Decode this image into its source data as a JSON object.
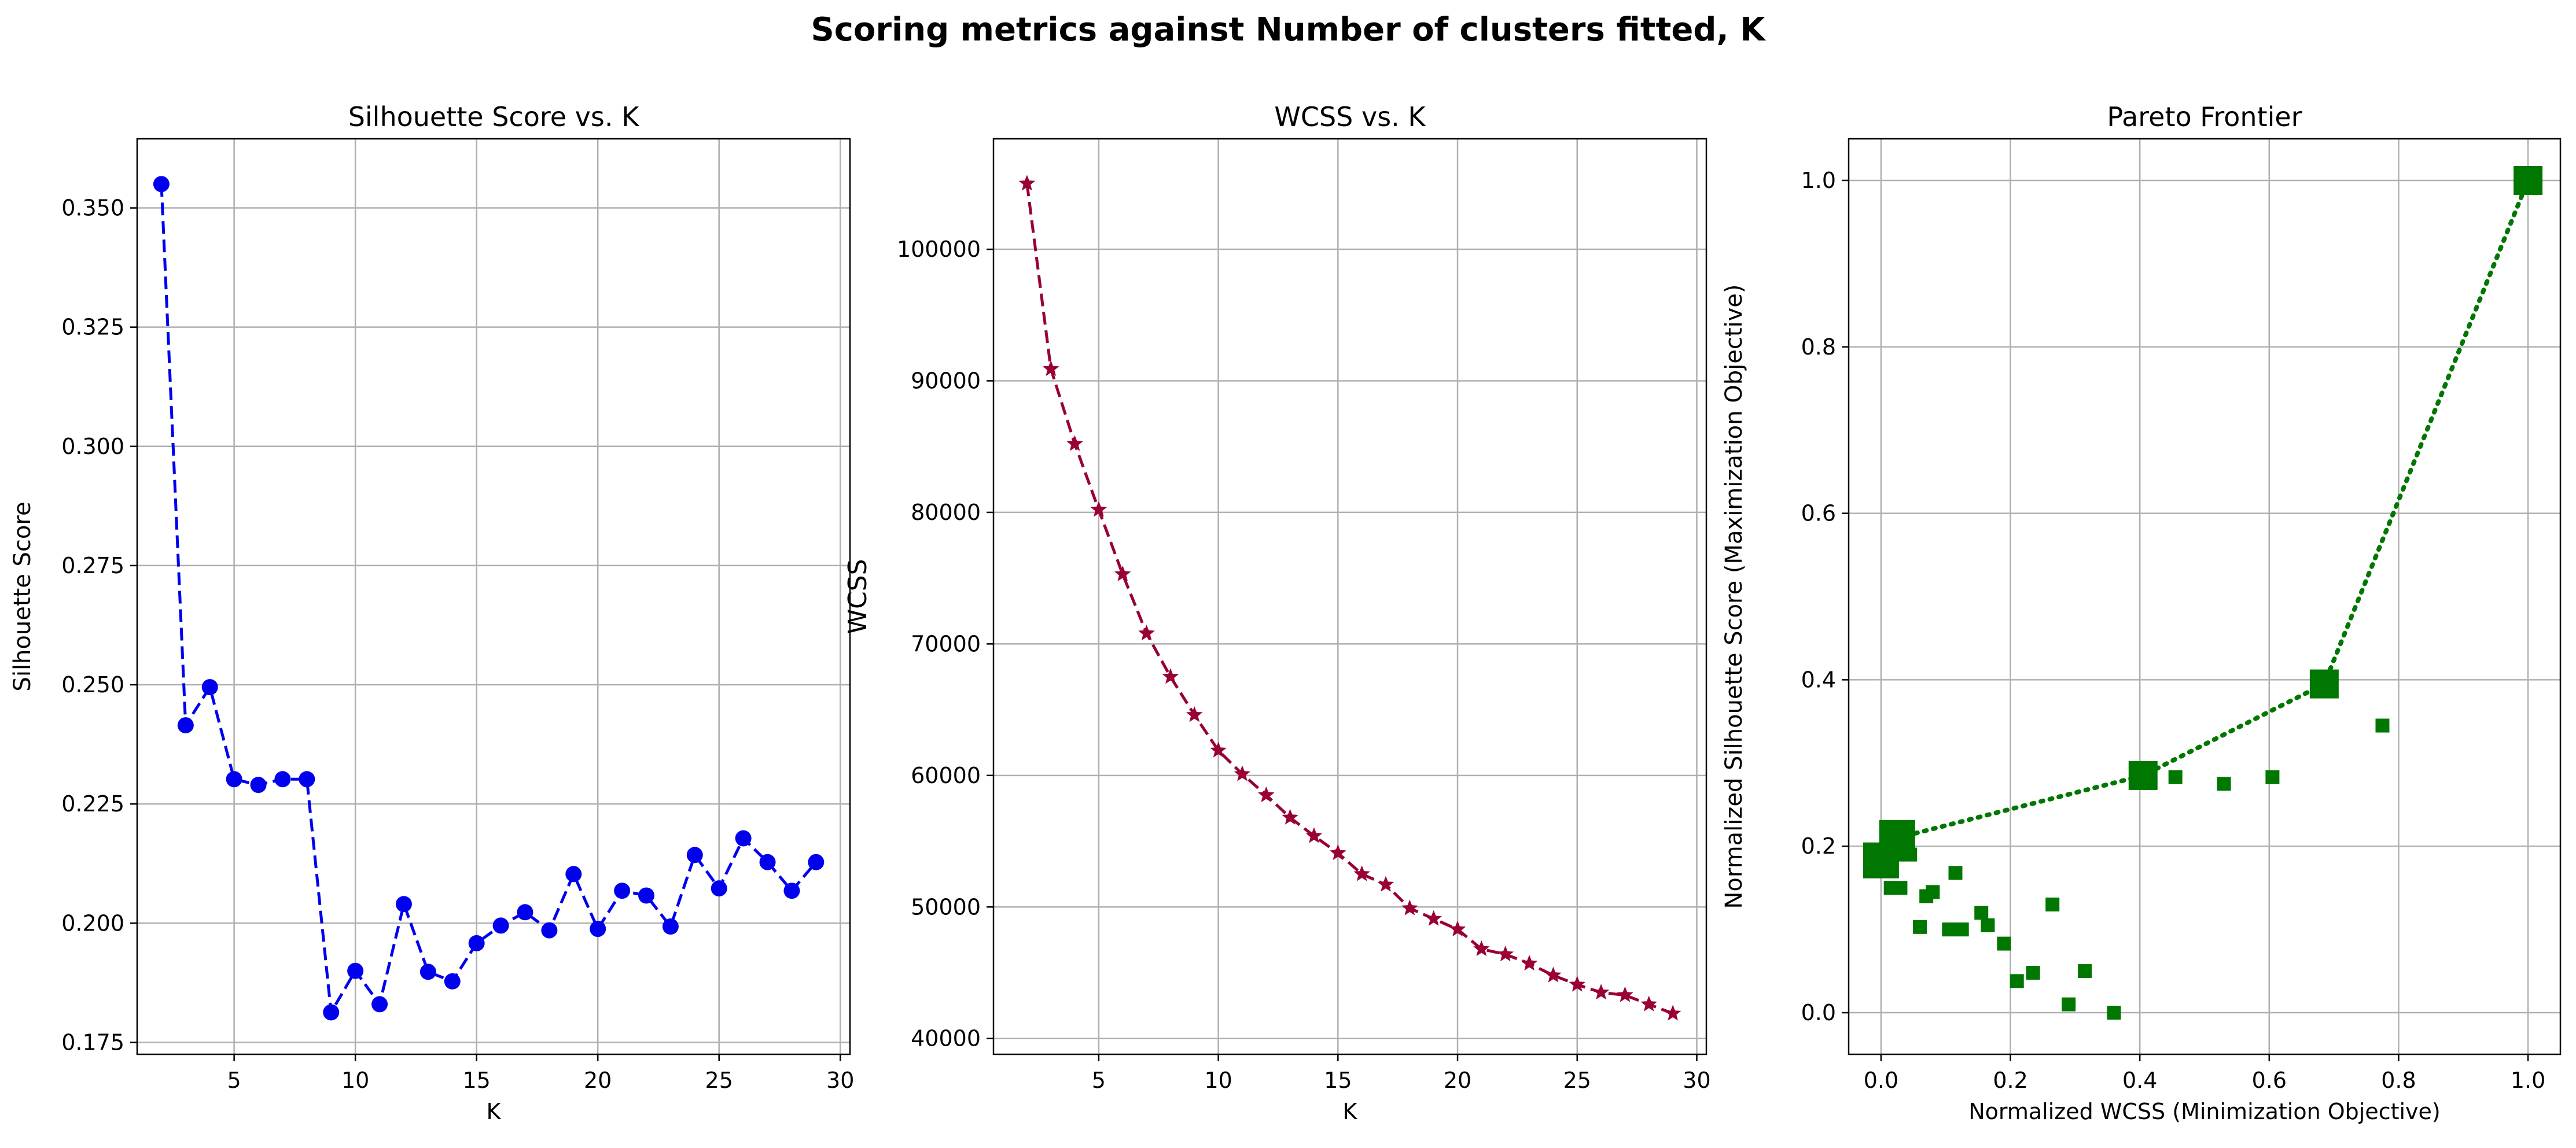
{
  "figure": {
    "suptitle": "Scoring metrics against Number of clusters fitted, K"
  },
  "chart_data": [
    {
      "type": "line",
      "title": "Silhouette Score vs. K",
      "xlabel": "K",
      "ylabel": "Silhouette Score",
      "xlim": [
        1,
        30.4
      ],
      "ylim": [
        0.1725,
        0.3645
      ],
      "xticks": [
        5,
        10,
        15,
        20,
        25,
        30
      ],
      "yticks": [
        0.175,
        0.2,
        0.225,
        0.25,
        0.275,
        0.3,
        0.325,
        0.35
      ],
      "ytick_decimals": 3,
      "grid": true,
      "color": "#0000ee",
      "marker": "circle",
      "linestyle": "dashed",
      "x": [
        2,
        3,
        4,
        5,
        6,
        7,
        8,
        9,
        10,
        11,
        12,
        13,
        14,
        15,
        16,
        17,
        18,
        19,
        20,
        21,
        22,
        23,
        24,
        25,
        26,
        27,
        28,
        29
      ],
      "y": [
        0.355,
        0.2415,
        0.2495,
        0.2302,
        0.229,
        0.2302,
        0.2302,
        0.1813,
        0.19,
        0.183,
        0.204,
        0.1898,
        0.1878,
        0.1958,
        0.1995,
        0.2023,
        0.1985,
        0.2103,
        0.1988,
        0.2068,
        0.2058,
        0.1993,
        0.2143,
        0.2073,
        0.2178,
        0.2128,
        0.2068,
        0.2128
      ]
    },
    {
      "type": "line",
      "title": "WCSS vs. K",
      "xlabel": "K",
      "ylabel": "WCSS",
      "xlim": [
        0.6,
        30.4
      ],
      "ylim": [
        38800,
        108400
      ],
      "xticks": [
        5,
        10,
        15,
        20,
        25,
        30
      ],
      "yticks": [
        40000,
        50000,
        60000,
        70000,
        80000,
        90000,
        100000
      ],
      "ytick_decimals": 0,
      "grid": true,
      "color": "#990033",
      "marker": "star",
      "linestyle": "dashed",
      "x": [
        2,
        3,
        4,
        5,
        6,
        7,
        8,
        9,
        10,
        11,
        12,
        13,
        14,
        15,
        16,
        17,
        18,
        19,
        20,
        21,
        22,
        23,
        24,
        25,
        26,
        27,
        28,
        29
      ],
      "y": [
        105000,
        90900,
        85200,
        80200,
        75300,
        70800,
        67500,
        64600,
        61900,
        60100,
        58500,
        56800,
        55400,
        54100,
        52500,
        51700,
        49900,
        49100,
        48300,
        46800,
        46400,
        45700,
        44800,
        44100,
        43500,
        43300,
        42600,
        41900
      ]
    },
    {
      "type": "scatter",
      "title": "Pareto Frontier",
      "xlabel": "Normalized WCSS (Minimization Objective)",
      "ylabel": "Normalized Silhouette Score (Maximization Objective)",
      "xlim": [
        -0.05,
        1.05
      ],
      "ylim": [
        -0.05,
        1.05
      ],
      "xticks": [
        0,
        0.2,
        0.4,
        0.6,
        0.8,
        1
      ],
      "yticks": [
        0,
        0.2,
        0.4,
        0.6,
        0.8,
        1
      ],
      "ytick_decimals": 1,
      "grid": true,
      "color": "#007700",
      "marker": "square",
      "points": [
        {
          "x": 0.025,
          "y": 0.19
        },
        {
          "x": 0.045,
          "y": 0.19
        },
        {
          "x": 0.015,
          "y": 0.15
        },
        {
          "x": 0.03,
          "y": 0.15
        },
        {
          "x": 0.07,
          "y": 0.14
        },
        {
          "x": 0.08,
          "y": 0.145
        },
        {
          "x": 0.06,
          "y": 0.103
        },
        {
          "x": 0.105,
          "y": 0.1
        },
        {
          "x": 0.125,
          "y": 0.1
        },
        {
          "x": 0.115,
          "y": 0.168
        },
        {
          "x": 0.155,
          "y": 0.12
        },
        {
          "x": 0.165,
          "y": 0.105
        },
        {
          "x": 0.19,
          "y": 0.083
        },
        {
          "x": 0.21,
          "y": 0.038
        },
        {
          "x": 0.235,
          "y": 0.048
        },
        {
          "x": 0.265,
          "y": 0.13
        },
        {
          "x": 0.29,
          "y": 0.01
        },
        {
          "x": 0.315,
          "y": 0.05
        },
        {
          "x": 0.36,
          "y": 0.0
        },
        {
          "x": 0.455,
          "y": 0.283
        },
        {
          "x": 0.53,
          "y": 0.275
        },
        {
          "x": 0.605,
          "y": 0.283
        },
        {
          "x": 0.775,
          "y": 0.345
        }
      ],
      "frontier": [
        {
          "x": 0.0,
          "y": 0.183
        },
        {
          "x": 0.025,
          "y": 0.21
        },
        {
          "x": 0.405,
          "y": 0.285
        },
        {
          "x": 0.685,
          "y": 0.395
        },
        {
          "x": 1.0,
          "y": 1.0
        }
      ]
    }
  ]
}
